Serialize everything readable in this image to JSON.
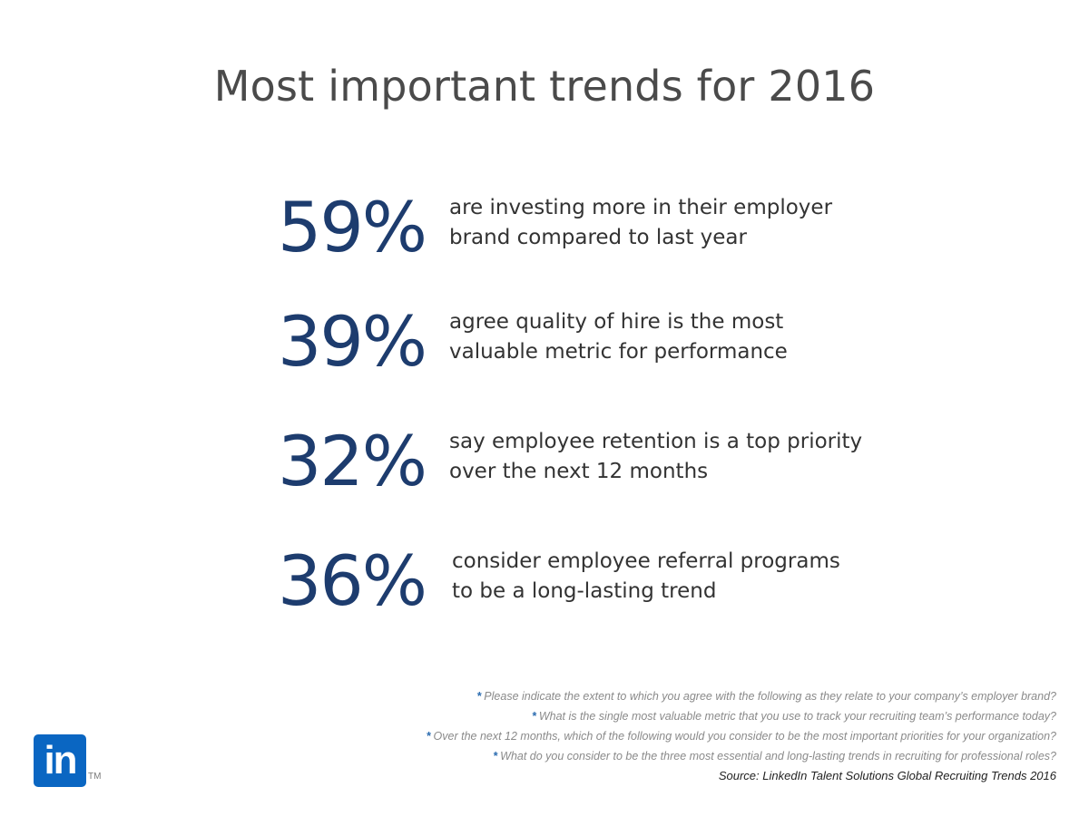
{
  "title": "Most important trends for 2016",
  "stats": [
    {
      "value": "59%",
      "line1": "are investing more in their employer",
      "line2": "brand compared to last year"
    },
    {
      "value": "39%",
      "line1": "agree quality of hire is the most",
      "line2": "valuable metric for performance"
    },
    {
      "value": "32%",
      "line1": "say employee retention is a top priority",
      "line2": "over the next 12 months"
    },
    {
      "value": "36%",
      "line1": "consider employee referral programs",
      "line2": "to be a long-lasting trend"
    }
  ],
  "footnotes": [
    "Please indicate the extent to which you agree with the following as they relate to your company’s employer brand?",
    "What is the single most valuable metric that you use to track your recruiting team’s performance today?",
    "Over the next 12 months, which of the following would you consider to be the most important priorities for your organization?",
    "What do you consider to be the three most essential and long-lasting trends in recruiting for professional roles?"
  ],
  "footnote_marker": "*",
  "source": "Source: LinkedIn Talent Solutions Global Recruiting Trends 2016",
  "logo": {
    "text": "in",
    "trademark": "TM",
    "color": "#0a66c2"
  },
  "colors": {
    "stat_value": "#1d3c6e",
    "title": "#4a4a4a"
  }
}
